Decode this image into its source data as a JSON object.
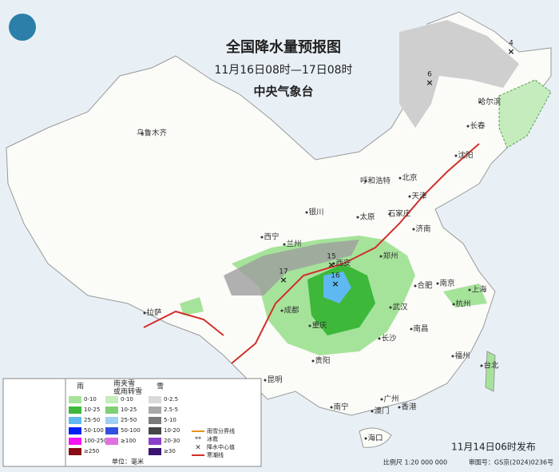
{
  "header": {
    "title": "全国降水量预报图",
    "period": "11月16日08时—17日08时",
    "agency": "中央气象台"
  },
  "cities": [
    "乌鲁木齐",
    "哈尔滨",
    "长春",
    "沈阳",
    "北京",
    "呼和浩特",
    "天津",
    "银川",
    "太原",
    "石家庄",
    "济南",
    "西宁",
    "兰州",
    "郑州",
    "西安",
    "合肥",
    "南京",
    "上海",
    "成都",
    "武汉",
    "杭州",
    "拉萨",
    "重庆",
    "南昌",
    "长沙",
    "福州",
    "贵阳",
    "台北",
    "昆明",
    "广州",
    "南宁",
    "澳门",
    "香港",
    "海口"
  ],
  "centers": [
    "6",
    "4",
    "15",
    "16",
    "17"
  ],
  "legend": {
    "rain": {
      "title": "雨",
      "items": [
        {
          "label": "0-10",
          "color": "#a6e39a"
        },
        {
          "label": "10-25",
          "color": "#3db83b"
        },
        {
          "label": "25-50",
          "color": "#5fb8f0"
        },
        {
          "label": "50-100",
          "color": "#0021f5"
        },
        {
          "label": "100-250",
          "color": "#f513f5"
        },
        {
          "label": "≥250",
          "color": "#8a0a16"
        }
      ]
    },
    "mixed": {
      "title": "雨夹雪\n或雨转雪",
      "items": [
        {
          "label": "0-10",
          "color": "#c4ecbc"
        },
        {
          "label": "10-25",
          "color": "#7fcf74"
        },
        {
          "label": "25-50",
          "color": "#9fcff2"
        },
        {
          "label": "50-100",
          "color": "#3050e0"
        },
        {
          "label": "≥100",
          "color": "#e070e0"
        }
      ]
    },
    "snow": {
      "title": "雪",
      "items": [
        {
          "label": "0-2.5",
          "color": "#d9d9d9"
        },
        {
          "label": "2.5-5",
          "color": "#a8a8a8"
        },
        {
          "label": "5-10",
          "color": "#7a7a7a"
        },
        {
          "label": "10-20",
          "color": "#464646"
        },
        {
          "label": "20-30",
          "color": "#8a3fc9"
        },
        {
          "label": "≥30",
          "color": "#3a1470"
        }
      ]
    },
    "unit": "单位：毫米",
    "symbols": [
      "雨雪分界线",
      "冰雹",
      "降水中心值",
      "寒潮线"
    ]
  },
  "footer": {
    "issued": "11月14日06时发布",
    "scale": "比例尺 1:20 000 000",
    "approval": "审图号：GS京(2024)0236号"
  }
}
